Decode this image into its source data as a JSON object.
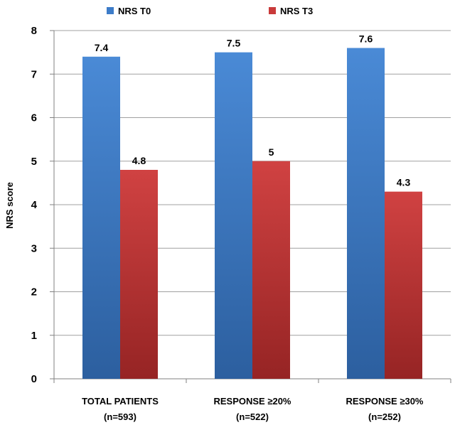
{
  "chart_data": {
    "type": "bar",
    "title": "",
    "xlabel": "",
    "ylabel": "NRS score",
    "ylim": [
      0,
      8
    ],
    "yticks": [
      0,
      1,
      2,
      3,
      4,
      5,
      6,
      7,
      8
    ],
    "grid": true,
    "legend_position": "top",
    "categories": [
      [
        "TOTAL PATIENTS",
        "(n=593)"
      ],
      [
        "RESPONSE ≥20%",
        "(n=522)"
      ],
      [
        "RESPONSE ≥30%",
        "(n=252)"
      ]
    ],
    "series": [
      {
        "name": "NRS T0",
        "values": [
          7.4,
          7.5,
          7.6
        ],
        "labels": [
          "7.4",
          "7.5",
          "7.6"
        ],
        "color": "#3d7cc9",
        "color_dark": "#2a5e9e"
      },
      {
        "name": "NRS T3",
        "values": [
          4.8,
          5,
          4.3
        ],
        "labels": [
          "4.8",
          "5",
          "4.3"
        ],
        "color": "#c93a3a",
        "color_dark": "#9a2525"
      }
    ]
  }
}
